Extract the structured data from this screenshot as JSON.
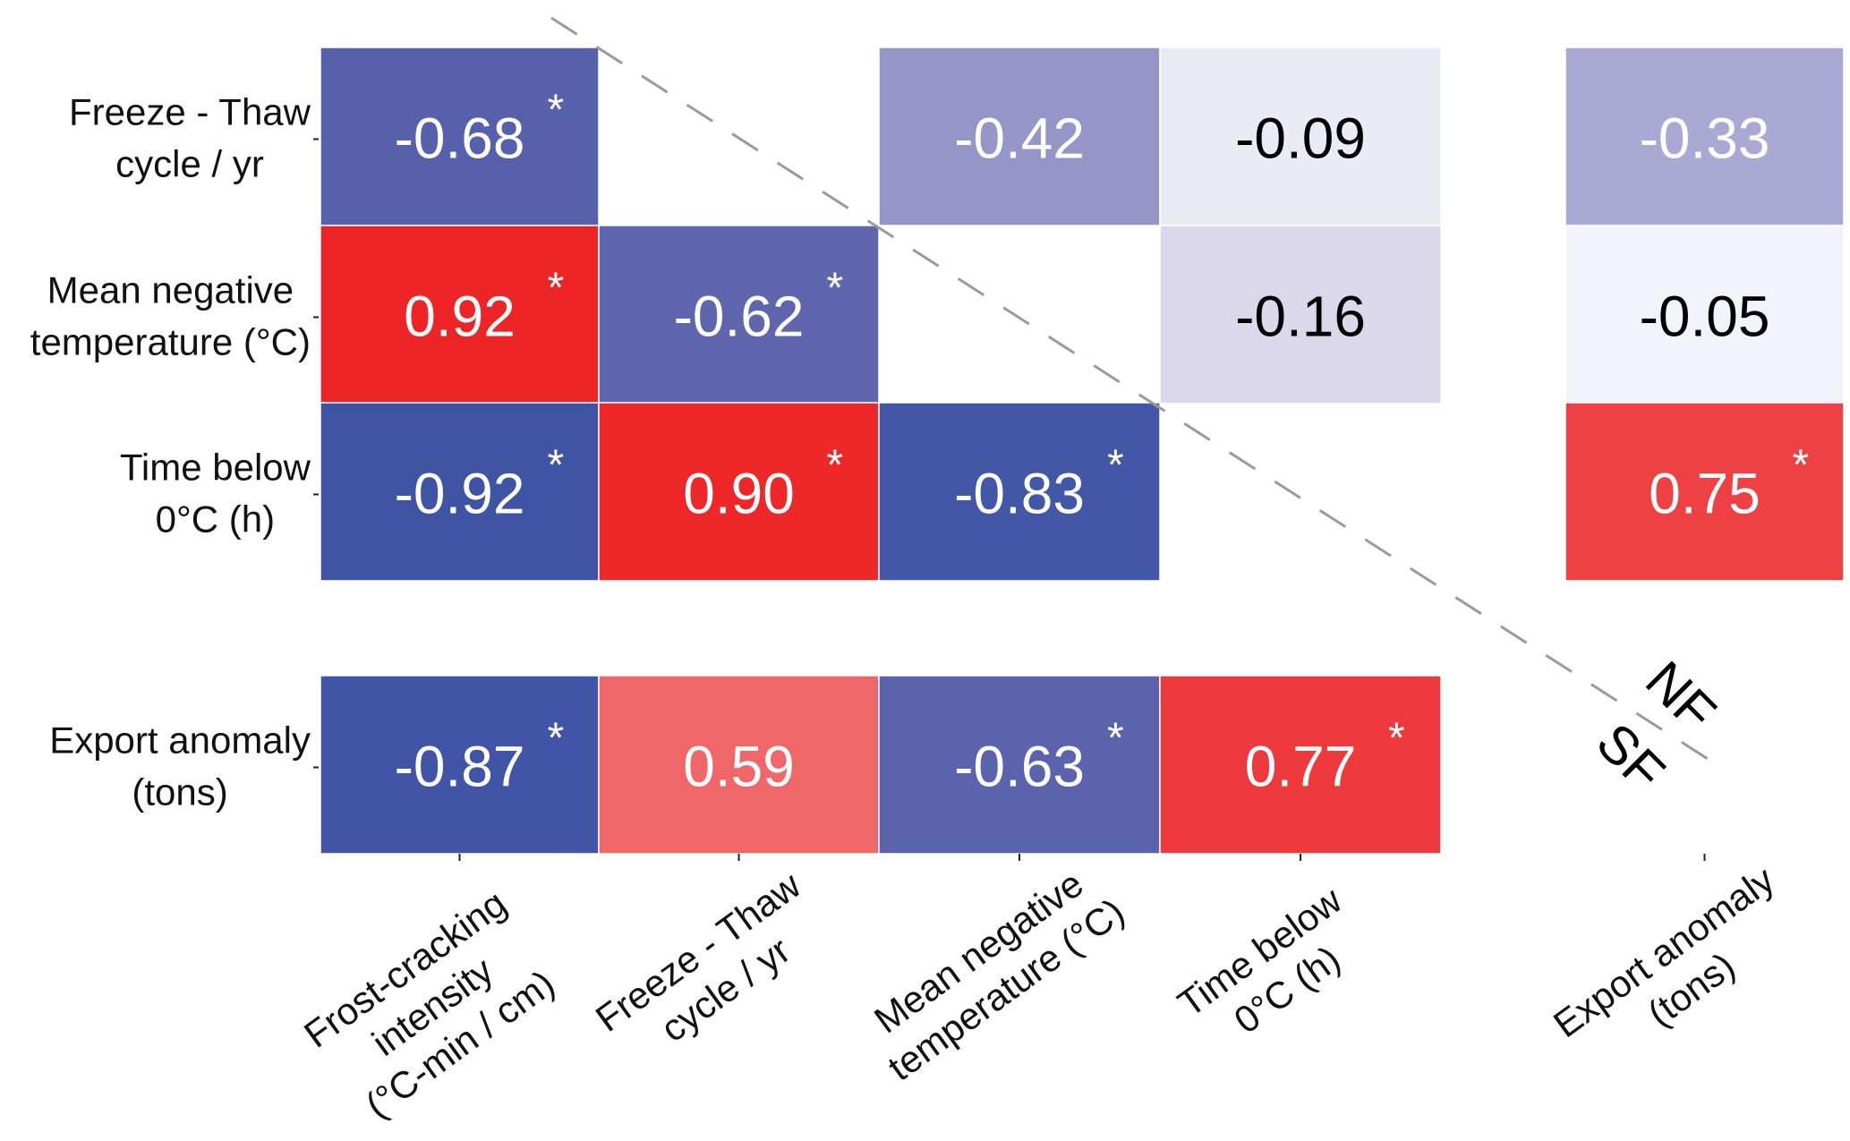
{
  "chart_data": {
    "type": "heatmap",
    "title": "",
    "row_labels": [
      [
        "Freeze - Thaw",
        "cycle / yr"
      ],
      [
        "Mean negative",
        "temperature (°C)"
      ],
      [
        "Time below",
        "0°C (h)"
      ],
      [
        "Export anomaly",
        "(tons)"
      ]
    ],
    "column_labels": [
      [
        "Frost-cracking",
        "intensity",
        "(°C-min / cm)"
      ],
      [
        "Freeze - Thaw",
        "cycle / yr"
      ],
      [
        "Mean negative",
        "temperature (°C)"
      ],
      [
        "Time below",
        "0°C (h)"
      ],
      [
        "Export anomaly",
        "(tons)"
      ]
    ],
    "group_labels": {
      "upper": "NF",
      "lower": "SF"
    },
    "significance_marker": "*",
    "color_scale": {
      "negative": "#3F55A4",
      "zero": "#FFFFFF",
      "positive": "#EE2527"
    },
    "cells": [
      {
        "row": 0,
        "col": 0,
        "value": "-0.68",
        "sig": true,
        "color": "#5760AA"
      },
      {
        "row": 0,
        "col": 2,
        "value": "-0.42",
        "sig": false,
        "color": "#9595C8"
      },
      {
        "row": 0,
        "col": 3,
        "value": "-0.09",
        "sig": false,
        "color": "#EBEBF5"
      },
      {
        "row": 0,
        "col": 4,
        "value": "-0.33",
        "sig": false,
        "color": "#A9A9D4"
      },
      {
        "row": 1,
        "col": 0,
        "value": "0.92",
        "sig": true,
        "color": "#EE2527"
      },
      {
        "row": 1,
        "col": 1,
        "value": "-0.62",
        "sig": true,
        "color": "#6066AE"
      },
      {
        "row": 1,
        "col": 3,
        "value": "-0.16",
        "sig": false,
        "color": "#DAD8EA"
      },
      {
        "row": 1,
        "col": 4,
        "value": "-0.05",
        "sig": false,
        "color": "#F2F2FA"
      },
      {
        "row": 2,
        "col": 0,
        "value": "-0.92",
        "sig": true,
        "color": "#3F55A4"
      },
      {
        "row": 2,
        "col": 1,
        "value": "0.90",
        "sig": true,
        "color": "#EE2828"
      },
      {
        "row": 2,
        "col": 2,
        "value": "-0.83",
        "sig": true,
        "color": "#4257A5"
      },
      {
        "row": 2,
        "col": 4,
        "value": "0.75",
        "sig": true,
        "color": "#EE4143"
      },
      {
        "row": 3,
        "col": 0,
        "value": "-0.87",
        "sig": true,
        "color": "#4055A5"
      },
      {
        "row": 3,
        "col": 1,
        "value": "0.59",
        "sig": false,
        "color": "#F0676A"
      },
      {
        "row": 3,
        "col": 2,
        "value": "-0.63",
        "sig": true,
        "color": "#5A63AC"
      },
      {
        "row": 3,
        "col": 3,
        "value": "0.77",
        "sig": true,
        "color": "#EE3A3D"
      }
    ]
  }
}
